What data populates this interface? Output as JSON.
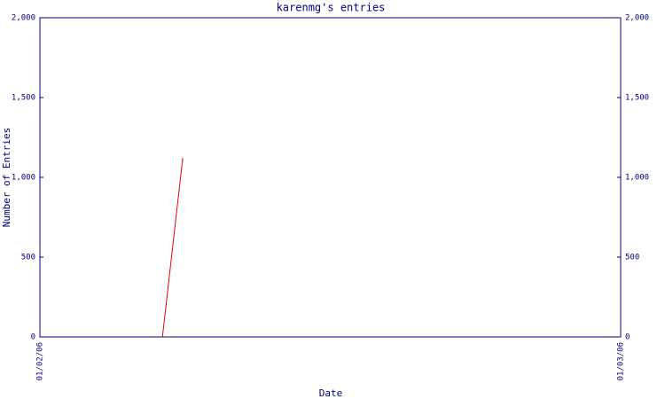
{
  "chart_data": {
    "type": "line",
    "title": "karenmg's entries",
    "x_label": "Date",
    "y_label": "Number of Entries",
    "x": [
      0.211,
      0.246
    ],
    "series": [
      {
        "name": "entries",
        "color": "#e00000",
        "values": [
          0,
          1122
        ]
      }
    ],
    "xlim": [
      0,
      1
    ],
    "xticks": [
      {
        "value": 0,
        "label": "01/02/06"
      },
      {
        "value": 1,
        "label": "01/03/06"
      }
    ],
    "ylim": [
      0,
      2000
    ],
    "yticks": [
      0,
      500,
      {
        "value": 1000,
        "label": "1,000"
      },
      {
        "value": 1500,
        "label": "1,500"
      },
      {
        "value": 2000,
        "label": "2,000"
      }
    ],
    "y2lim": [
      0,
      2000
    ],
    "y2ticks": [
      0,
      500,
      {
        "value": 1000,
        "label": "1,000"
      },
      {
        "value": 1500,
        "label": "1,500"
      },
      {
        "value": 2000,
        "label": "2,000"
      }
    ],
    "axis_color": "#000080"
  }
}
